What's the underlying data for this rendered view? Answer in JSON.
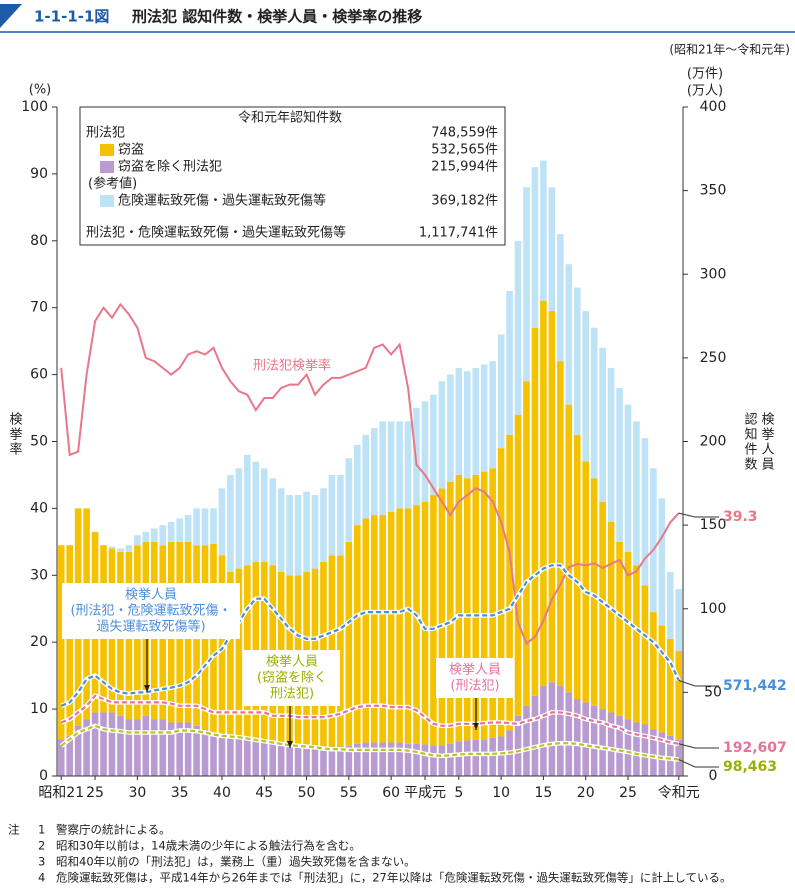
{
  "header": {
    "figure_no": "1-1-1-1図",
    "title": "刑法犯 認知件数・検挙人員・検挙率の推移",
    "period": "(昭和21年～令和元年)"
  },
  "chart_data": {
    "type": "bar",
    "y_unit": "(%)",
    "y2_units": [
      "(万件)",
      "(万人)"
    ],
    "y_label": "検挙率",
    "y2_labels": [
      "検挙人員",
      "認知件数"
    ],
    "ylim": [
      0,
      100
    ],
    "yticks": [
      0,
      10,
      20,
      30,
      40,
      50,
      60,
      70,
      80,
      90,
      100
    ],
    "y2lim": [
      0,
      400
    ],
    "y2ticks": [
      0,
      50,
      100,
      150,
      200,
      250,
      300,
      350,
      400
    ],
    "grid": false,
    "categories": [
      "昭和21",
      null,
      null,
      null,
      "25",
      null,
      null,
      null,
      null,
      "30",
      null,
      null,
      null,
      null,
      "35",
      null,
      null,
      null,
      null,
      "40",
      null,
      null,
      null,
      null,
      "45",
      null,
      null,
      null,
      null,
      "50",
      null,
      null,
      null,
      null,
      "55",
      null,
      null,
      null,
      null,
      "60",
      null,
      null,
      null,
      "平成元",
      null,
      null,
      null,
      "5",
      null,
      null,
      null,
      null,
      "10",
      null,
      null,
      null,
      null,
      "15",
      null,
      null,
      null,
      null,
      "20",
      null,
      null,
      null,
      null,
      "25",
      null,
      null,
      null,
      null,
      null,
      "令和元"
    ],
    "legend_title": "令和元年認知件数",
    "legend_extra": [
      {
        "label": "刑法犯",
        "count": "748,559件"
      },
      {
        "label": "(参考値)"
      },
      {
        "label": "刑法犯・危険運転致死傷・過失運転致死傷等",
        "count": "1,117,741件"
      }
    ],
    "series": [
      {
        "name": "窃盗を除く刑法犯",
        "legend_count": "215,994件",
        "type": "bar",
        "axis": "y2",
        "color": "#b99bd2",
        "values": [
          22,
          24,
          30,
          34,
          38,
          38,
          38,
          36,
          34,
          34,
          36,
          34,
          34,
          32,
          32,
          32,
          30,
          28,
          26,
          24,
          24,
          22.8,
          21.6,
          20.8,
          20,
          19.2,
          18.4,
          18,
          17.2,
          17.6,
          17.6,
          17.6,
          17.6,
          17.6,
          18,
          19.2,
          20,
          20,
          20,
          20,
          20,
          19.2,
          19.2,
          18.8,
          18.4,
          18.4,
          19.2,
          20.8,
          21.2,
          21.6,
          22,
          22.8,
          23.6,
          27.2,
          36,
          42,
          48,
          54,
          56,
          54,
          50,
          46,
          44,
          42,
          40,
          38,
          36,
          34,
          32,
          30.8,
          28,
          26,
          24,
          21.5994
        ]
      },
      {
        "name": "窃盗",
        "legend_count": "532,565件",
        "type": "bar",
        "axis": "y2",
        "color": "#f5c200",
        "values": [
          116,
          114,
          130,
          126,
          108,
          100,
          98,
          98,
          100,
          104,
          104,
          106,
          104,
          108,
          108,
          108,
          108,
          110,
          112.8,
          108,
          98,
          101.2,
          104.4,
          107.2,
          108,
          106.8,
          103.6,
          102,
          102.8,
          104.4,
          106.4,
          110.4,
          114.4,
          114.4,
          122,
          130.8,
          134,
          136,
          136,
          138,
          140,
          140.8,
          142.8,
          145.2,
          149.6,
          153.6,
          156.8,
          159.2,
          156.8,
          158.4,
          160,
          161.2,
          172.4,
          176.8,
          180,
          194,
          220,
          230,
          222,
          194,
          172,
          158,
          144,
          136,
          124,
          114,
          104,
          100,
          94,
          83.2,
          70,
          64,
          58,
          53.2565
        ]
      },
      {
        "name": "危険運転致死傷・過失運転致死傷等",
        "legend_count": "369,182件",
        "type": "bar",
        "axis": "y2",
        "color": "#bfe3f6",
        "values": [
          0,
          0,
          0,
          0,
          0,
          0,
          1.2,
          2,
          4,
          6,
          6,
          8,
          12,
          12,
          14,
          16,
          22,
          22,
          21.2,
          40,
          58,
          60,
          66,
          60,
          56,
          52,
          50,
          48,
          48,
          48,
          44,
          44,
          48,
          48,
          50,
          48,
          50,
          52,
          56,
          54,
          52,
          52,
          58,
          60,
          60,
          64,
          64,
          64,
          64,
          64,
          64,
          64,
          68,
          86,
          104,
          116,
          96,
          84,
          74,
          76,
          84,
          88,
          90,
          90,
          92,
          92,
          92,
          88,
          86,
          88,
          86,
          76,
          40,
          36.9182
        ]
      },
      {
        "name": "刑法犯検挙率",
        "type": "line",
        "axis": "y",
        "color": "#e8778a",
        "values": [
          61,
          48,
          48.5,
          60,
          68,
          70,
          68.5,
          70.5,
          69,
          67,
          62.5,
          62,
          61,
          60,
          61,
          63,
          63.5,
          63,
          64,
          61,
          59,
          57.5,
          57,
          54.7,
          56.5,
          56.5,
          58,
          58.5,
          58.5,
          60,
          57,
          58.5,
          59.5,
          59.5,
          60,
          60.5,
          61,
          64,
          64.5,
          63,
          64.5,
          58,
          46.5,
          45,
          43,
          41,
          39,
          41,
          42,
          43,
          42.5,
          41,
          38,
          33.5,
          23,
          19.8,
          20.8,
          23.2,
          26.4,
          28.6,
          31.2,
          31.7,
          31.5,
          31.8,
          31.1,
          31.7,
          32.3,
          30,
          30.6,
          32.5,
          33.8,
          35.7,
          37.9,
          39.3
        ]
      },
      {
        "name_lines": [
          "検挙人員",
          "(刑法犯・危険運転致死傷・",
          "過失運転致死傷等)"
        ],
        "type": "line",
        "dashed": true,
        "axis": "y2",
        "color": "#4b8fd8",
        "values": [
          42,
          44,
          50,
          58,
          60,
          56,
          52,
          50,
          49.2,
          50,
          50,
          51.2,
          52,
          52.8,
          54,
          56,
          60,
          66,
          72,
          76,
          84,
          92,
          100,
          106,
          106,
          100,
          94,
          88,
          84,
          82,
          82,
          84,
          86,
          88,
          92,
          96,
          98,
          98,
          98,
          98,
          98,
          100,
          96,
          88,
          88,
          90,
          92,
          96,
          96,
          96,
          96,
          96,
          98,
          100,
          108,
          116,
          120,
          124,
          126,
          126,
          120,
          116,
          110,
          108,
          104,
          100,
          96,
          92,
          88,
          84,
          80,
          74,
          68,
          57.1442
        ],
        "value_labels": [
          null,
          null,
          null,
          null,
          null,
          null,
          null,
          null,
          null,
          null,
          null,
          null,
          null,
          null,
          null,
          null,
          null,
          null,
          null,
          null,
          null,
          null,
          null,
          null,
          null,
          null,
          null,
          null,
          null,
          null,
          null,
          null,
          null,
          null,
          null,
          null,
          null,
          null,
          null,
          null,
          null,
          null,
          null,
          null,
          null,
          null,
          null,
          null,
          null,
          null,
          null,
          null,
          null,
          null,
          null,
          null,
          null,
          null,
          null,
          null,
          null,
          null,
          null,
          null,
          null,
          null,
          null,
          null,
          null,
          null,
          null,
          null,
          null,
          "571,442"
        ]
      },
      {
        "name_lines": [
          "検挙人員",
          "(刑法犯)"
        ],
        "type": "line",
        "dashed": true,
        "axis": "y2",
        "color": "#e8739a",
        "values": [
          32,
          34,
          38,
          42,
          48,
          46,
          44,
          44,
          44,
          44,
          44,
          44,
          44,
          43.2,
          42,
          42,
          42,
          40,
          38,
          38,
          38,
          38,
          38,
          38,
          38,
          36,
          36,
          36,
          35.2,
          35.2,
          35.2,
          35.2,
          36,
          37.2,
          39.2,
          41.2,
          42,
          42,
          42,
          41.2,
          41.2,
          41.2,
          39.2,
          35.2,
          31.2,
          30,
          30,
          31.2,
          31.2,
          31.2,
          31.6,
          32,
          32,
          31.6,
          31.2,
          32.8,
          34,
          36,
          38,
          38,
          37.2,
          36,
          34,
          32.8,
          32,
          30,
          28.8,
          26,
          24.8,
          24,
          22.8,
          21.6,
          20,
          19.2607
        ],
        "value_labels": [
          null,
          null,
          null,
          null,
          null,
          null,
          null,
          null,
          null,
          null,
          null,
          null,
          null,
          null,
          null,
          null,
          null,
          null,
          null,
          null,
          null,
          null,
          null,
          null,
          null,
          null,
          null,
          null,
          null,
          null,
          null,
          null,
          null,
          null,
          null,
          null,
          null,
          null,
          null,
          null,
          null,
          null,
          null,
          null,
          null,
          null,
          null,
          null,
          null,
          null,
          null,
          null,
          null,
          null,
          null,
          null,
          null,
          null,
          null,
          null,
          null,
          null,
          null,
          null,
          null,
          null,
          null,
          null,
          null,
          null,
          null,
          null,
          null,
          "192,607"
        ]
      },
      {
        "name_lines": [
          "検挙人員",
          "(窃盗を除く",
          "刑法犯)"
        ],
        "type": "line",
        "dashed": true,
        "axis": "y2",
        "color": "#b5c81e",
        "values": [
          18,
          22,
          26,
          28,
          30,
          28,
          27.2,
          26.8,
          26,
          26,
          26,
          26,
          26,
          26,
          27.2,
          27.2,
          26.8,
          26,
          24.8,
          24,
          23.6,
          23.2,
          22.4,
          21.6,
          20.8,
          20,
          19.2,
          18.4,
          18,
          17.6,
          17.2,
          16.4,
          16,
          16,
          15.6,
          15.6,
          15.6,
          15.6,
          15.6,
          15.6,
          15.6,
          15.2,
          14.4,
          13.2,
          12.4,
          12,
          12.4,
          12.8,
          13.2,
          13.2,
          13.2,
          13.2,
          13.6,
          14,
          14.8,
          16,
          17.2,
          18.4,
          19.2,
          19.6,
          19.6,
          19.2,
          18.4,
          17.6,
          16.8,
          16,
          15.2,
          14.4,
          13.2,
          12.4,
          11.6,
          10.8,
          10.4,
          9.8463
        ],
        "value_labels": [
          null,
          null,
          null,
          null,
          null,
          null,
          null,
          null,
          null,
          null,
          null,
          null,
          null,
          null,
          null,
          null,
          null,
          null,
          null,
          null,
          null,
          null,
          null,
          null,
          null,
          null,
          null,
          null,
          null,
          null,
          null,
          null,
          null,
          null,
          null,
          null,
          null,
          null,
          null,
          null,
          null,
          null,
          null,
          null,
          null,
          null,
          null,
          null,
          null,
          null,
          null,
          null,
          null,
          null,
          null,
          null,
          null,
          null,
          null,
          null,
          null,
          null,
          null,
          null,
          null,
          null,
          null,
          null,
          null,
          null,
          null,
          null,
          null,
          "98,463"
        ]
      }
    ]
  },
  "notes": {
    "label": "注",
    "items": [
      {
        "number": "1",
        "text": "警察庁の統計による。"
      },
      {
        "number": "2",
        "text": "昭和30年以前は，14歳未満の少年による触法行為を含む。"
      },
      {
        "number": "3",
        "text": "昭和40年以前の「刑法犯」は，業務上（重）過失致死傷を含まない。"
      },
      {
        "number": "4",
        "text": "危険運転致死傷は，平成14年から26年までは「刑法犯」に，27年以降は「危険運転致死傷・過失運転致死傷等」に計上している。"
      }
    ]
  }
}
